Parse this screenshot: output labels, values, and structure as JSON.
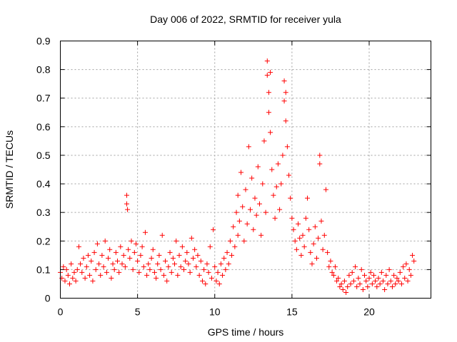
{
  "chart_data": {
    "type": "scatter",
    "title": "Day 006 of 2022, SRMTID for receiver yula",
    "xlabel": "GPS time / hours",
    "ylabel": "SRMTID / TECUs",
    "xlim": [
      0,
      24
    ],
    "ylim": [
      0,
      0.9
    ],
    "xticks": [
      0,
      5,
      10,
      15,
      20
    ],
    "xtick_labels": [
      "0",
      "5",
      "10",
      "15",
      "20"
    ],
    "yticks": [
      0,
      0.1,
      0.2,
      0.3,
      0.4,
      0.5,
      0.6,
      0.7,
      0.8,
      0.9
    ],
    "ytick_labels": [
      "0",
      "0.1",
      "0.2",
      "0.3",
      "0.4",
      "0.5",
      "0.6",
      "0.7",
      "0.8",
      "0.9"
    ],
    "grid": true,
    "marker": "+",
    "color": "#ff0000",
    "series": [
      {
        "name": "SRMTID",
        "points": [
          [
            0.0,
            0.09
          ],
          [
            0.1,
            0.07
          ],
          [
            0.2,
            0.11
          ],
          [
            0.3,
            0.06
          ],
          [
            0.4,
            0.1
          ],
          [
            0.5,
            0.08
          ],
          [
            0.6,
            0.05
          ],
          [
            0.7,
            0.12
          ],
          [
            0.8,
            0.07
          ],
          [
            0.9,
            0.09
          ],
          [
            1.0,
            0.06
          ],
          [
            1.1,
            0.1
          ],
          [
            1.2,
            0.18
          ],
          [
            1.3,
            0.12
          ],
          [
            1.4,
            0.09
          ],
          [
            1.5,
            0.14
          ],
          [
            1.6,
            0.07
          ],
          [
            1.7,
            0.11
          ],
          [
            1.8,
            0.15
          ],
          [
            1.9,
            0.08
          ],
          [
            2.0,
            0.13
          ],
          [
            2.1,
            0.06
          ],
          [
            2.2,
            0.16
          ],
          [
            2.3,
            0.1
          ],
          [
            2.4,
            0.19
          ],
          [
            2.5,
            0.12
          ],
          [
            2.6,
            0.08
          ],
          [
            2.7,
            0.15
          ],
          [
            2.8,
            0.11
          ],
          [
            2.9,
            0.2
          ],
          [
            3.0,
            0.09
          ],
          [
            3.1,
            0.14
          ],
          [
            3.2,
            0.17
          ],
          [
            3.3,
            0.07
          ],
          [
            3.4,
            0.12
          ],
          [
            3.5,
            0.1
          ],
          [
            3.6,
            0.16
          ],
          [
            3.7,
            0.13
          ],
          [
            3.8,
            0.09
          ],
          [
            3.9,
            0.18
          ],
          [
            4.0,
            0.12
          ],
          [
            4.1,
            0.15
          ],
          [
            4.2,
            0.11
          ],
          [
            4.3,
            0.36
          ],
          [
            4.3,
            0.33
          ],
          [
            4.35,
            0.31
          ],
          [
            4.4,
            0.17
          ],
          [
            4.5,
            0.14
          ],
          [
            4.6,
            0.2
          ],
          [
            4.7,
            0.1
          ],
          [
            4.8,
            0.16
          ],
          [
            4.9,
            0.19
          ],
          [
            5.0,
            0.13
          ],
          [
            5.1,
            0.09
          ],
          [
            5.2,
            0.15
          ],
          [
            5.3,
            0.18
          ],
          [
            5.4,
            0.11
          ],
          [
            5.5,
            0.23
          ],
          [
            5.6,
            0.08
          ],
          [
            5.7,
            0.12
          ],
          [
            5.8,
            0.1
          ],
          [
            5.9,
            0.14
          ],
          [
            6.0,
            0.17
          ],
          [
            6.1,
            0.09
          ],
          [
            6.2,
            0.07
          ],
          [
            6.3,
            0.12
          ],
          [
            6.4,
            0.15
          ],
          [
            6.5,
            0.1
          ],
          [
            6.6,
            0.22
          ],
          [
            6.7,
            0.08
          ],
          [
            6.8,
            0.13
          ],
          [
            6.9,
            0.06
          ],
          [
            7.0,
            0.11
          ],
          [
            7.1,
            0.16
          ],
          [
            7.2,
            0.09
          ],
          [
            7.3,
            0.14
          ],
          [
            7.4,
            0.12
          ],
          [
            7.5,
            0.2
          ],
          [
            7.6,
            0.08
          ],
          [
            7.7,
            0.15
          ],
          [
            7.8,
            0.11
          ],
          [
            7.9,
            0.18
          ],
          [
            8.0,
            0.1
          ],
          [
            8.1,
            0.13
          ],
          [
            8.2,
            0.16
          ],
          [
            8.3,
            0.12
          ],
          [
            8.4,
            0.09
          ],
          [
            8.5,
            0.21
          ],
          [
            8.6,
            0.14
          ],
          [
            8.7,
            0.17
          ],
          [
            8.8,
            0.11
          ],
          [
            8.9,
            0.15
          ],
          [
            9.0,
            0.08
          ],
          [
            9.1,
            0.13
          ],
          [
            9.2,
            0.06
          ],
          [
            9.3,
            0.1
          ],
          [
            9.4,
            0.05
          ],
          [
            9.5,
            0.12
          ],
          [
            9.6,
            0.09
          ],
          [
            9.7,
            0.18
          ],
          [
            9.8,
            0.07
          ],
          [
            9.9,
            0.24
          ],
          [
            10.0,
            0.11
          ],
          [
            10.1,
            0.06
          ],
          [
            10.2,
            0.09
          ],
          [
            10.3,
            0.05
          ],
          [
            10.4,
            0.12
          ],
          [
            10.5,
            0.08
          ],
          [
            10.6,
            0.14
          ],
          [
            10.7,
            0.1
          ],
          [
            10.8,
            0.16
          ],
          [
            10.9,
            0.12
          ],
          [
            11.0,
            0.2
          ],
          [
            11.1,
            0.15
          ],
          [
            11.2,
            0.25
          ],
          [
            11.3,
            0.18
          ],
          [
            11.4,
            0.3
          ],
          [
            11.5,
            0.22
          ],
          [
            11.5,
            0.36
          ],
          [
            11.6,
            0.27
          ],
          [
            11.7,
            0.44
          ],
          [
            11.8,
            0.32
          ],
          [
            11.9,
            0.2
          ],
          [
            12.0,
            0.38
          ],
          [
            12.1,
            0.26
          ],
          [
            12.2,
            0.53
          ],
          [
            12.3,
            0.31
          ],
          [
            12.4,
            0.42
          ],
          [
            12.5,
            0.24
          ],
          [
            12.6,
            0.35
          ],
          [
            12.7,
            0.29
          ],
          [
            12.8,
            0.46
          ],
          [
            12.9,
            0.33
          ],
          [
            13.0,
            0.22
          ],
          [
            13.1,
            0.4
          ],
          [
            13.2,
            0.55
          ],
          [
            13.3,
            0.3
          ],
          [
            13.4,
            0.83
          ],
          [
            13.4,
            0.78
          ],
          [
            13.5,
            0.72
          ],
          [
            13.5,
            0.65
          ],
          [
            13.6,
            0.79
          ],
          [
            13.6,
            0.58
          ],
          [
            13.7,
            0.45
          ],
          [
            13.8,
            0.36
          ],
          [
            13.9,
            0.28
          ],
          [
            14.0,
            0.39
          ],
          [
            14.1,
            0.47
          ],
          [
            14.2,
            0.31
          ],
          [
            14.3,
            0.4
          ],
          [
            14.4,
            0.5
          ],
          [
            14.5,
            0.76
          ],
          [
            14.5,
            0.69
          ],
          [
            14.6,
            0.72
          ],
          [
            14.6,
            0.62
          ],
          [
            14.7,
            0.53
          ],
          [
            14.8,
            0.43
          ],
          [
            14.9,
            0.35
          ],
          [
            15.0,
            0.28
          ],
          [
            15.1,
            0.24
          ],
          [
            15.2,
            0.2
          ],
          [
            15.3,
            0.17
          ],
          [
            15.4,
            0.26
          ],
          [
            15.5,
            0.21
          ],
          [
            15.6,
            0.15
          ],
          [
            15.7,
            0.22
          ],
          [
            15.8,
            0.18
          ],
          [
            15.9,
            0.28
          ],
          [
            16.0,
            0.35
          ],
          [
            16.1,
            0.24
          ],
          [
            16.2,
            0.16
          ],
          [
            16.3,
            0.12
          ],
          [
            16.4,
            0.19
          ],
          [
            16.5,
            0.25
          ],
          [
            16.6,
            0.14
          ],
          [
            16.7,
            0.21
          ],
          [
            16.8,
            0.5
          ],
          [
            16.8,
            0.47
          ],
          [
            16.9,
            0.27
          ],
          [
            17.0,
            0.17
          ],
          [
            17.1,
            0.22
          ],
          [
            17.2,
            0.38
          ],
          [
            17.3,
            0.16
          ],
          [
            17.4,
            0.11
          ],
          [
            17.5,
            0.13
          ],
          [
            17.6,
            0.09
          ],
          [
            17.7,
            0.08
          ],
          [
            17.8,
            0.11
          ],
          [
            17.9,
            0.06
          ],
          [
            18.0,
            0.07
          ],
          [
            18.1,
            0.04
          ],
          [
            18.2,
            0.05
          ],
          [
            18.3,
            0.03
          ],
          [
            18.4,
            0.06
          ],
          [
            18.5,
            0.02
          ],
          [
            18.6,
            0.04
          ],
          [
            18.7,
            0.08
          ],
          [
            18.8,
            0.05
          ],
          [
            18.9,
            0.09
          ],
          [
            19.0,
            0.06
          ],
          [
            19.1,
            0.11
          ],
          [
            19.2,
            0.04
          ],
          [
            19.3,
            0.07
          ],
          [
            19.4,
            0.05
          ],
          [
            19.5,
            0.1
          ],
          [
            19.6,
            0.03
          ],
          [
            19.7,
            0.08
          ],
          [
            19.8,
            0.06
          ],
          [
            19.9,
            0.04
          ],
          [
            20.0,
            0.07
          ],
          [
            20.1,
            0.09
          ],
          [
            20.2,
            0.05
          ],
          [
            20.3,
            0.08
          ],
          [
            20.4,
            0.06
          ],
          [
            20.5,
            0.04
          ],
          [
            20.6,
            0.07
          ],
          [
            20.7,
            0.05
          ],
          [
            20.8,
            0.09
          ],
          [
            20.9,
            0.06
          ],
          [
            21.0,
            0.03
          ],
          [
            21.1,
            0.08
          ],
          [
            21.2,
            0.05
          ],
          [
            21.3,
            0.1
          ],
          [
            21.4,
            0.06
          ],
          [
            21.5,
            0.04
          ],
          [
            21.6,
            0.08
          ],
          [
            21.7,
            0.05
          ],
          [
            21.8,
            0.07
          ],
          [
            21.9,
            0.06
          ],
          [
            22.0,
            0.09
          ],
          [
            22.1,
            0.05
          ],
          [
            22.2,
            0.11
          ],
          [
            22.3,
            0.07
          ],
          [
            22.4,
            0.12
          ],
          [
            22.5,
            0.06
          ],
          [
            22.6,
            0.1
          ],
          [
            22.7,
            0.08
          ],
          [
            22.8,
            0.15
          ],
          [
            22.9,
            0.13
          ]
        ]
      }
    ]
  }
}
